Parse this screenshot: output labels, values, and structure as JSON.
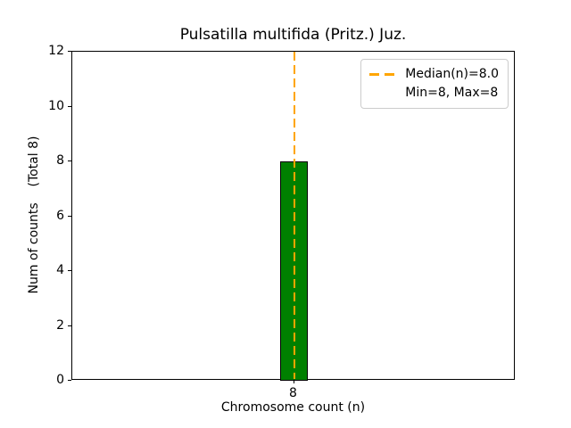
{
  "chart_data": {
    "type": "bar",
    "title": "Pulsatilla multifida (Pritz.) Juz.",
    "xlabel": "Chromosome count (n)",
    "ylabel": "Num of counts    (Total 8)",
    "categories": [
      "8"
    ],
    "values": [
      8
    ],
    "ylim": [
      0,
      12
    ],
    "yticks": [
      0,
      2,
      4,
      6,
      8,
      10,
      12
    ],
    "grid": false,
    "bar_color": "#008000",
    "bar_edge_color": "#000000",
    "median_line": {
      "value": 8.0,
      "color": "#FFA500",
      "style": "dashed"
    },
    "legend": {
      "position": "upper right",
      "entries": [
        {
          "label": "Median(n)=8.0",
          "handle": "dashed-line",
          "color": "#FFA500"
        },
        {
          "label": "Min=8, Max=8",
          "handle": "none",
          "color": ""
        }
      ]
    }
  }
}
